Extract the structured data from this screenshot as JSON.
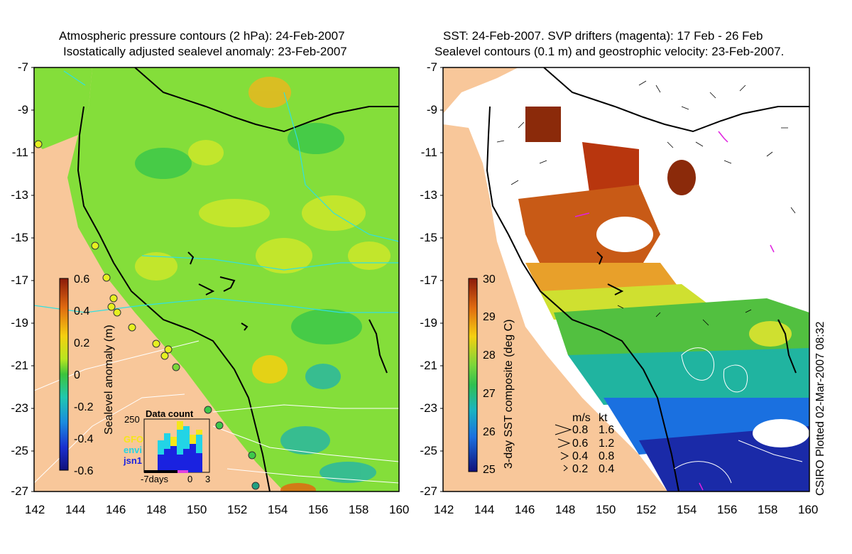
{
  "left_panel": {
    "title_line1": "Atmospheric pressure contours (2 hPa): 24-Feb-2007",
    "title_line2": "Isostatically adjusted sealevel anomaly: 23-Feb-2007",
    "colorbar": {
      "label": "Sealevel anomaly (m)",
      "ticks": [
        "0.6",
        "0.4",
        "0.2",
        "0",
        "-0.2",
        "-0.4",
        "-0.6"
      ],
      "range": [
        -0.6,
        0.6
      ]
    },
    "inset": {
      "title": "Data count",
      "y_max_label": "250",
      "x_labels": [
        "-7days",
        "0",
        "3"
      ],
      "legend": [
        {
          "name": "GFO",
          "color": "#f5e61a"
        },
        {
          "name": "envi",
          "color": "#22d4e6"
        },
        {
          "name": "jsn1",
          "color": "#1a22e0"
        }
      ]
    }
  },
  "right_panel": {
    "title_line1": "SST: 24-Feb-2007. SVP drifters (magenta): 17 Feb - 26 Feb",
    "title_line2": "Sealevel contours (0.1 m) and geostrophic velocity: 23-Feb-2007.",
    "colorbar": {
      "label": "3-day SST composite (deg C)",
      "ticks": [
        "30",
        "29",
        "28",
        "27",
        "26",
        "25"
      ],
      "range": [
        25,
        30
      ]
    },
    "velocity_legend": {
      "header_ms": "m/s",
      "header_kt": "kt",
      "rows": [
        {
          "ms": "0.8",
          "kt": "1.6"
        },
        {
          "ms": "0.6",
          "kt": "1.2"
        },
        {
          "ms": "0.4",
          "kt": "0.8"
        },
        {
          "ms": "0.2",
          "kt": "0.4"
        }
      ]
    },
    "credit": "CSIRO Plotted 02-Mar-2007 08:32"
  },
  "axes": {
    "x_ticks": [
      "142",
      "144",
      "146",
      "148",
      "150",
      "152",
      "154",
      "156",
      "158",
      "160"
    ],
    "y_ticks": [
      "-7",
      "-9",
      "-11",
      "-13",
      "-15",
      "-17",
      "-19",
      "-21",
      "-23",
      "-25",
      "-27"
    ],
    "lon_range": [
      142,
      160
    ],
    "lat_range": [
      -27,
      -7
    ]
  },
  "colors": {
    "land": "#f8c79a",
    "sea_base": "#84de3a",
    "sst_warm": "#d2691e",
    "sst_cool": "#1a2aa8"
  }
}
